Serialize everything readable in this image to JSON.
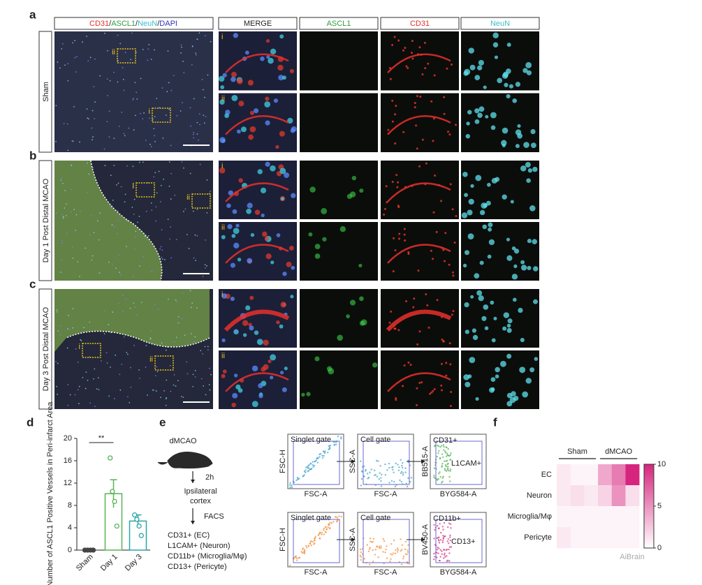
{
  "panel_letters": {
    "a": "a",
    "b": "b",
    "c": "c"
  },
  "header": {
    "overview": [
      "CD31",
      "/",
      "ASCL1",
      "/",
      "NeuN",
      "/",
      "DAPI"
    ],
    "overview_colors": [
      "#e0302a",
      "#222222",
      "#2e9e3c",
      "#222222",
      "#3fbccc",
      "#222222",
      "#2e33b8"
    ],
    "columns": [
      "MERGE",
      "ASCL1",
      "CD31",
      "NeuN"
    ],
    "column_colors": [
      "#222222",
      "#2e9e3c",
      "#e0302a",
      "#3fbccc"
    ]
  },
  "rows": [
    {
      "label": "Sham",
      "insets": [
        "i",
        "ii"
      ]
    },
    {
      "label": "Day 1 Post Distal MCAO",
      "insets": [
        "i",
        "ii"
      ]
    },
    {
      "label": "Day 3 Post Distal MCAO",
      "insets": [
        "i",
        "ii"
      ]
    }
  ],
  "panel_e": {
    "letter": "e",
    "model": "dMCAO",
    "time": "2h",
    "tissue": [
      "Ipsilateral",
      "cortex"
    ],
    "method": "FACS",
    "markers": [
      "CD31+ (EC)",
      "L1CAM+ (Neuron)",
      "CD11b+ (Microglia/Mφ)",
      "CD13+ (Pericyte)"
    ],
    "flow_rows": [
      [
        {
          "title": "Singlet gate",
          "xlabel": "FSC-A",
          "ylabel": "FSC-H"
        },
        {
          "title": "Cell gate",
          "xlabel": "FSC-A",
          "ylabel": "SSC-A"
        },
        {
          "xlabel": "BYG584-A",
          "ylabel": "BB515-A",
          "gates": [
            "CD31+",
            "L1CAM+"
          ]
        }
      ],
      [
        {
          "title": "Singlet gate",
          "xlabel": "FSC-A",
          "ylabel": "FSC-H"
        },
        {
          "title": "Cell gate",
          "xlabel": "FSC-A",
          "ylabel": "SSC-A"
        },
        {
          "xlabel": "BYG584-A",
          "ylabel": "BV450-A",
          "gates": [
            "CD11b+",
            "CD13+"
          ]
        }
      ]
    ]
  },
  "chart_data": [
    {
      "type": "bar",
      "letter": "d",
      "ylabel": "Number of ASCL1 Positive Vessels in Peri-infarct Area",
      "categories": [
        "Sham",
        "Day 1",
        "Day 3"
      ],
      "values": [
        0,
        10.1,
        5.2
      ],
      "errors": [
        0,
        2.5,
        1.1
      ],
      "points": [
        [
          0,
          0,
          0,
          0
        ],
        [
          16.5,
          10.5,
          8.7,
          4.3
        ],
        [
          6.3,
          5.5,
          4.3,
          2.6
        ]
      ],
      "colors": [
        "#444444",
        "#55b555",
        "#2aa5a5"
      ],
      "ylim": [
        0,
        20
      ],
      "yticks": [
        0,
        4,
        8,
        12,
        16,
        20
      ],
      "significance": "**"
    },
    {
      "type": "heatmap",
      "letter": "f",
      "rows": [
        "EC",
        "Neuron",
        "Microglia/Mφ",
        "Pericyte"
      ],
      "groups": [
        "Sham",
        "dMCAO"
      ],
      "values": [
        [
          1,
          0.5,
          0.5,
          4,
          6,
          10
        ],
        [
          1,
          1.5,
          1,
          2,
          5,
          1.5
        ],
        [
          0.5,
          0.5,
          0.5,
          0.5,
          0.5,
          0.5
        ],
        [
          1,
          0.5,
          0.5,
          0.5,
          0.5,
          0.5
        ]
      ],
      "color": "#d6257e",
      "colorbar_lim": [
        0,
        10
      ],
      "colorbar_ticks": [
        0,
        5,
        10
      ]
    }
  ],
  "watermark": "AiBrain"
}
